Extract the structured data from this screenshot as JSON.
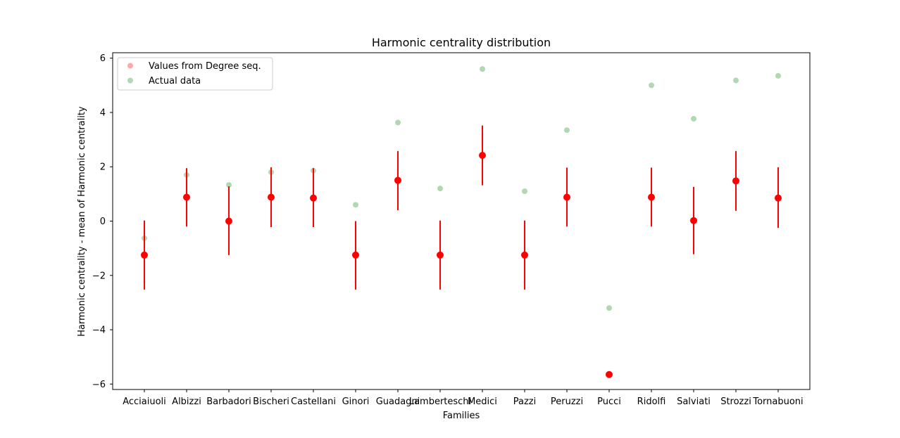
{
  "chart_data": {
    "type": "scatter",
    "title": "Harmonic centrality distribution",
    "xlabel": "Families",
    "ylabel": "Harmonic centrality - mean of Harmonic centrality",
    "ylim": [
      -6.2,
      6.2
    ],
    "yticks": [
      -6,
      -4,
      -2,
      0,
      2,
      4,
      6
    ],
    "categories": [
      "Acciaiuoli",
      "Albizzi",
      "Barbadori",
      "Bischeri",
      "Castellani",
      "Ginori",
      "Guadagni",
      "Lamberteschi",
      "Medici",
      "Pazzi",
      "Peruzzi",
      "Pucci",
      "Ridolfi",
      "Salviati",
      "Strozzi",
      "Tornabuoni"
    ],
    "legend_position": "top-left",
    "grid": false,
    "series": [
      {
        "name": "Values from Degree seq.",
        "legend_color": "#ffaaaa",
        "color": "#ff0000",
        "values": [
          -1.25,
          0.88,
          0.0,
          0.88,
          0.85,
          -1.25,
          1.5,
          -1.25,
          2.42,
          -1.25,
          0.88,
          -5.65,
          0.88,
          0.02,
          1.48,
          0.85
        ],
        "error_low": [
          -2.52,
          -0.2,
          -1.25,
          -0.22,
          -0.22,
          -2.52,
          0.4,
          -2.52,
          1.32,
          -2.52,
          -0.2,
          -5.65,
          -0.2,
          -1.22,
          0.38,
          -0.25
        ],
        "error_high": [
          0.02,
          1.95,
          1.28,
          1.98,
          1.95,
          0.0,
          2.58,
          0.02,
          3.52,
          0.02,
          1.97,
          -5.65,
          1.97,
          1.26,
          2.58,
          1.98
        ]
      },
      {
        "name": "Actual data",
        "color": "#b2d8b2",
        "values": [
          -0.63,
          1.7,
          1.33,
          1.8,
          1.86,
          0.6,
          3.63,
          1.2,
          5.6,
          1.1,
          3.35,
          -3.2,
          5.0,
          3.77,
          5.18,
          5.35
        ]
      }
    ]
  }
}
